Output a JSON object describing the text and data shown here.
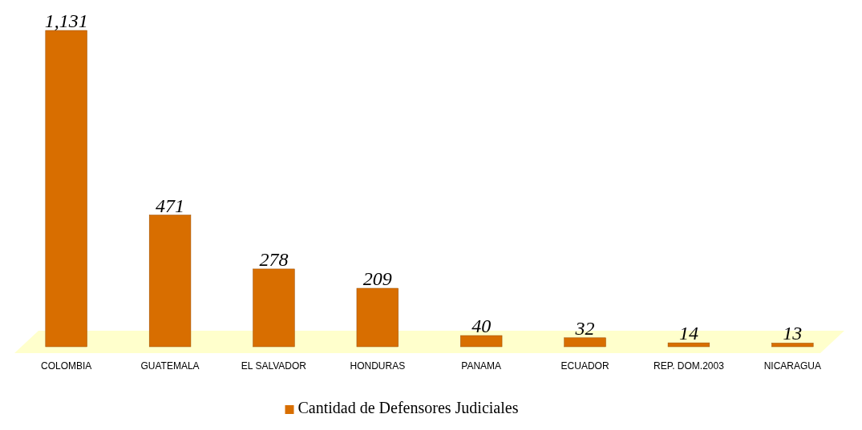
{
  "chart_data": {
    "type": "bar",
    "categories": [
      "COLOMBIA",
      "GUATEMALA",
      "EL SALVADOR",
      "HONDURAS",
      "PANAMA",
      "ECUADOR",
      "REP. DOM.2003",
      "NICARAGUA"
    ],
    "series": [
      {
        "name": "Cantidad de Defensores Judiciales",
        "color": "#d86e00",
        "values": [
          1131,
          471,
          278,
          209,
          40,
          32,
          14,
          13
        ],
        "value_labels": [
          "1,131",
          "471",
          "278",
          "209",
          "40",
          "32",
          "14",
          "13"
        ]
      }
    ],
    "legend": "bottom"
  }
}
